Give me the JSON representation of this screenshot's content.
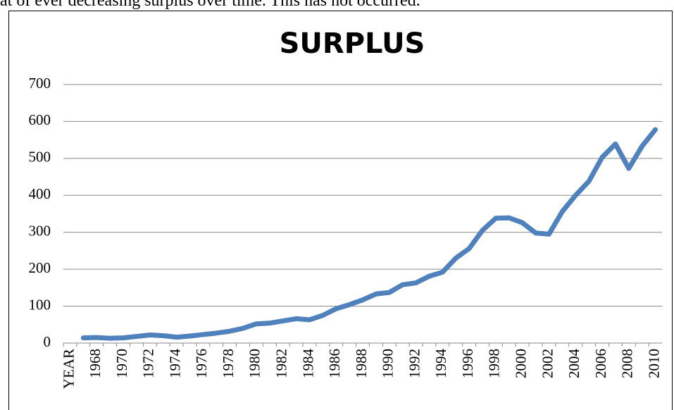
{
  "document": {
    "text": "at of ever decreasing surplus over time.  This has not occurred."
  },
  "chart_data": {
    "type": "line",
    "title": "SURPLUS",
    "categories": [
      "YEAR",
      null,
      "1968",
      null,
      "1970",
      null,
      "1972",
      null,
      "1974",
      null,
      "1976",
      null,
      "1978",
      null,
      "1980",
      null,
      "1982",
      null,
      "1984",
      null,
      "1986",
      null,
      "1988",
      null,
      "1990",
      null,
      "1992",
      null,
      "1994",
      null,
      "1996",
      null,
      "1998",
      null,
      "2000",
      null,
      "2002",
      null,
      "2004",
      null,
      "2006",
      null,
      "2008",
      null,
      "2010"
    ],
    "series": [
      {
        "color": "#4f81bd",
        "values": [
          null,
          14,
          15,
          13,
          14,
          18,
          22,
          20,
          16,
          19,
          23,
          27,
          32,
          40,
          52,
          54,
          60,
          66,
          63,
          75,
          93,
          104,
          117,
          133,
          137,
          158,
          163,
          181,
          192,
          230,
          256,
          305,
          338,
          339,
          326,
          298,
          295,
          356,
          400,
          438,
          503,
          539,
          473,
          533,
          578
        ]
      }
    ],
    "ylim": [
      0,
      700
    ],
    "yticks": [
      0,
      100,
      200,
      300,
      400,
      500,
      600,
      700
    ],
    "grid": true
  }
}
